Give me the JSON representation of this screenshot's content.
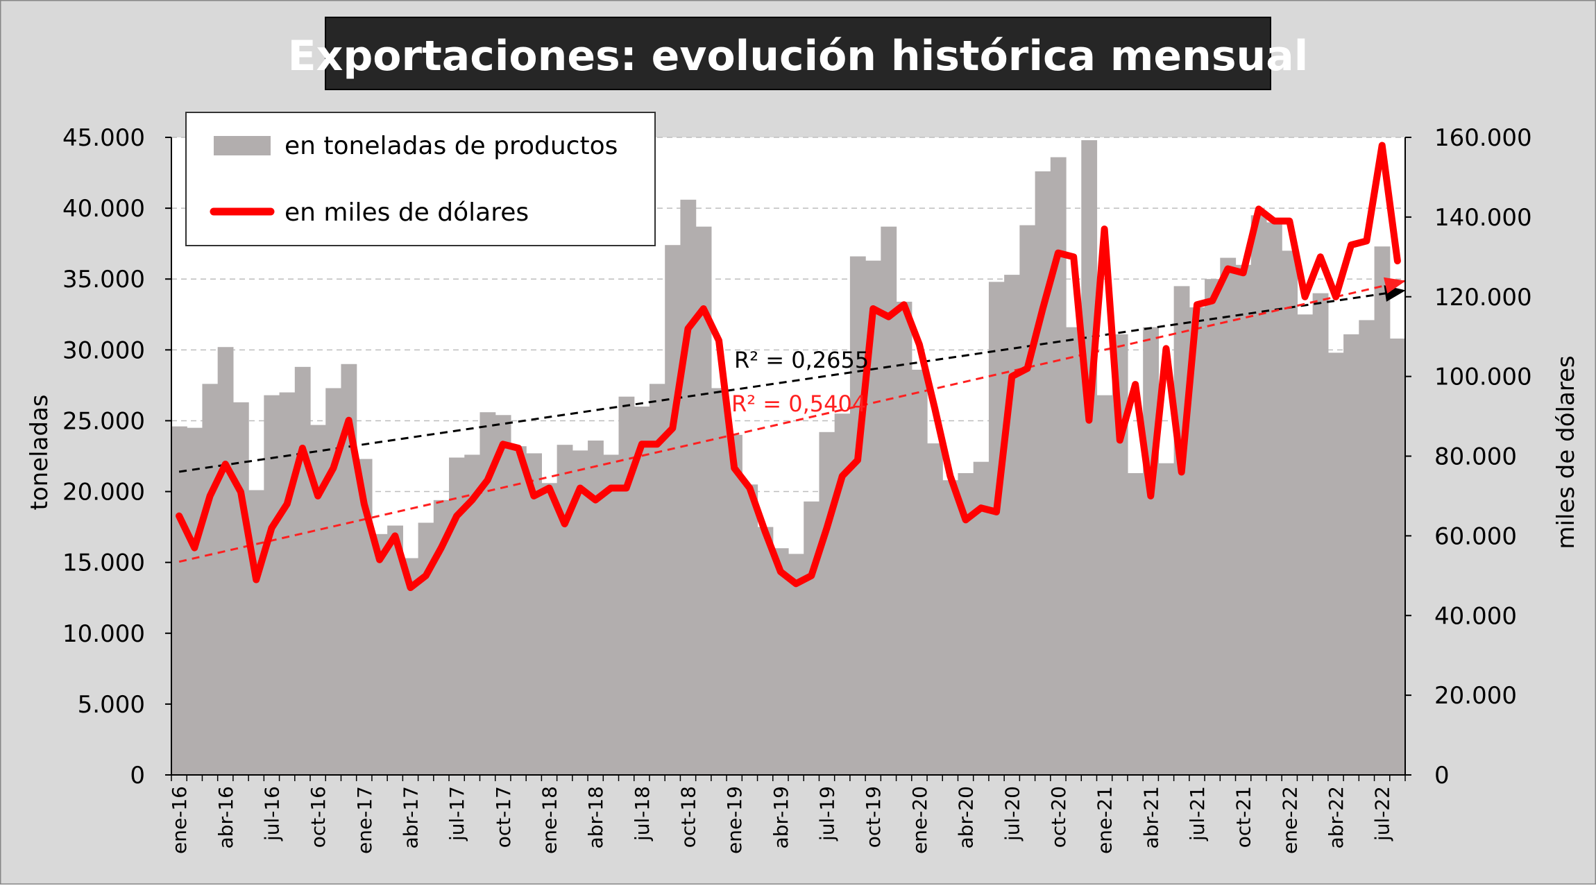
{
  "chart_data": {
    "type": "bar+line",
    "title": "Exportaciones: evolución histórica mensual",
    "y_left": {
      "label": "toneladas",
      "min": 0,
      "max": 45000,
      "step": 5000
    },
    "y_right": {
      "label": "miles de dólares",
      "min": 0,
      "max": 160000,
      "step": 20000
    },
    "y_left_ticks": [
      "0",
      "5.000",
      "10.000",
      "15.000",
      "20.000",
      "25.000",
      "30.000",
      "35.000",
      "40.000",
      "45.000"
    ],
    "y_right_ticks": [
      "0",
      "20.000",
      "40.000",
      "60.000",
      "80.000",
      "100.000",
      "120.000",
      "140.000",
      "160.000"
    ],
    "x_tick_labels": [
      "ene-16",
      "abr-16",
      "jul-16",
      "oct-16",
      "ene-17",
      "abr-17",
      "jul-17",
      "oct-17",
      "ene-18",
      "abr-18",
      "jul-18",
      "oct-18",
      "ene-19",
      "abr-19",
      "jul-19",
      "oct-19",
      "ene-20",
      "abr-20",
      "jul-20",
      "oct-20",
      "ene-21",
      "abr-21",
      "jul-21",
      "oct-21",
      "ene-22",
      "abr-22",
      "jul-22"
    ],
    "legend": {
      "placement": "top-left",
      "bars_label": "en toneladas de productos",
      "line_label": "en miles de dólares"
    },
    "series": [
      {
        "name": "en toneladas de productos",
        "kind": "bar",
        "axis": "left",
        "color": "#b2aeae",
        "values": [
          24600,
          24500,
          27600,
          30200,
          26300,
          20100,
          26800,
          27000,
          28800,
          24700,
          27300,
          29000,
          22300,
          17000,
          17600,
          15300,
          17800,
          19400,
          22400,
          22600,
          25600,
          25400,
          23200,
          22700,
          20600,
          23300,
          22900,
          23600,
          22600,
          26700,
          26000,
          27600,
          37400,
          40600,
          38700,
          27300,
          24000,
          20500,
          17500,
          16000,
          15600,
          19300,
          24200,
          25500,
          36600,
          36300,
          38700,
          33400,
          28600,
          23400,
          20800,
          21300,
          22100,
          34800,
          35300,
          38800,
          42600,
          43600,
          31600,
          44800,
          26800,
          31100,
          21300,
          31600,
          22000,
          34500,
          33000,
          35000,
          36500,
          36000,
          39500,
          39000,
          37000,
          32500,
          34000,
          29800,
          31100,
          32100,
          37300,
          30800
        ]
      },
      {
        "name": "en miles de dólares",
        "kind": "line",
        "axis": "right",
        "color": "#ff0000",
        "values": [
          65000,
          57000,
          70000,
          78000,
          71000,
          49000,
          62000,
          68000,
          82000,
          70000,
          77000,
          89000,
          68000,
          54000,
          60000,
          47000,
          50000,
          57000,
          65000,
          69000,
          74000,
          83000,
          82000,
          70000,
          72000,
          63000,
          72000,
          69000,
          72000,
          72000,
          83000,
          83000,
          87000,
          112000,
          117000,
          109000,
          77000,
          72000,
          61000,
          51000,
          48000,
          50000,
          62000,
          75000,
          79000,
          117000,
          115000,
          118000,
          108000,
          92000,
          75000,
          64000,
          67000,
          66000,
          100000,
          102000,
          117000,
          131000,
          130000,
          89000,
          137000,
          84000,
          98000,
          70000,
          107000,
          76000,
          118000,
          119000,
          127000,
          126000,
          142000,
          139000,
          139000,
          120000,
          130000,
          120000,
          133000,
          134000,
          158000,
          129000
        ]
      }
    ],
    "trendlines": [
      {
        "label": "R² = 0,2655",
        "color": "#000000",
        "axis": "left",
        "start": 21400,
        "end": 34200
      },
      {
        "label": "R² = 0,5404",
        "color": "#ff2020",
        "axis": "right",
        "start": 53500,
        "end": 124000
      }
    ]
  }
}
